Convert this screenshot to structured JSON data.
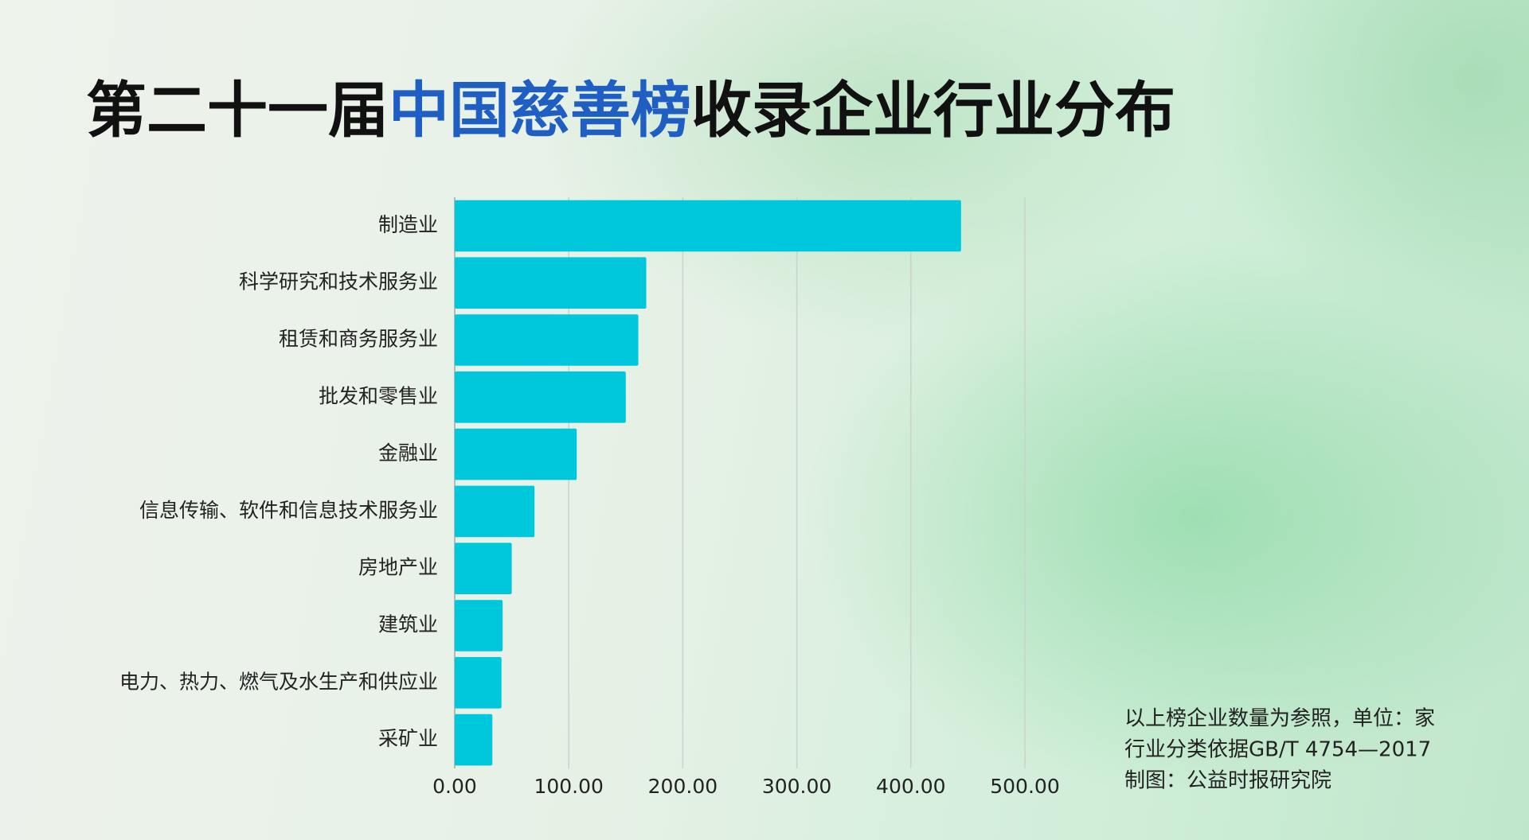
{
  "chart_data": {
    "type": "bar",
    "orientation": "horizontal",
    "title": [
      {
        "text": "第二十一届",
        "color": "#111111"
      },
      {
        "text": "中国慈善榜",
        "color": "#1f5fc4"
      },
      {
        "text": "收录企业行业分布",
        "color": "#111111"
      }
    ],
    "categories": [
      "制造业",
      "科学研究和技术服务业",
      "租赁和商务服务业",
      "批发和零售业",
      "金融业",
      "信息传输、软件和信息技术服务业",
      "房地产业",
      "建筑业",
      "电力、热力、燃气及水生产和供应业",
      "采矿业"
    ],
    "values": [
      444,
      168,
      161,
      150,
      107,
      70,
      50,
      42,
      41,
      33
    ],
    "color": "#00c8dc",
    "xlim": [
      0,
      500
    ],
    "xticks": [
      {
        "value": 0,
        "label": "0.00"
      },
      {
        "value": 100,
        "label": "100.00"
      },
      {
        "value": 200,
        "label": "200.00"
      },
      {
        "value": 300,
        "label": "300.00"
      },
      {
        "value": 400,
        "label": "400.00"
      },
      {
        "value": 500,
        "label": "500.00"
      }
    ],
    "grid": true,
    "notes": [
      "以上榜企业数量为参照，单位：家",
      "行业分类依据GB/T 4754—2017",
      "制图：公益时报研究院"
    ]
  }
}
